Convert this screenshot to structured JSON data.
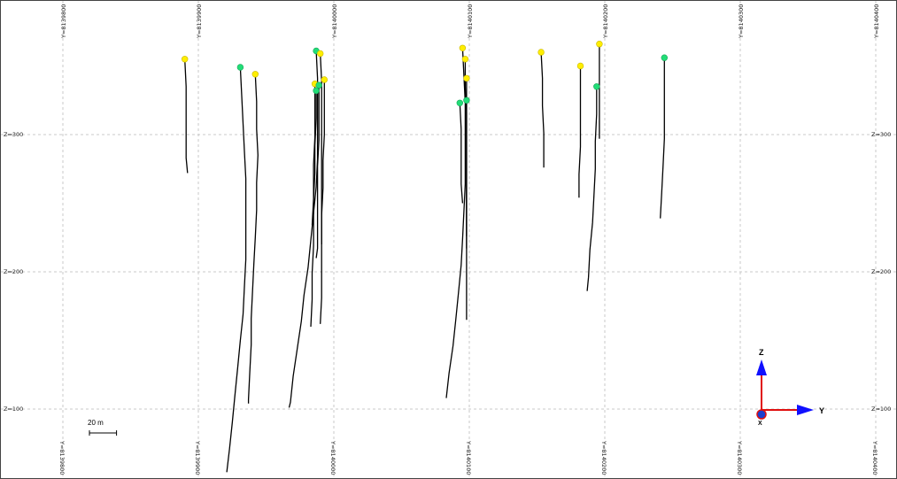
{
  "view": {
    "y_ticks": [
      {
        "label": "Y=8139800",
        "value": 8139800
      },
      {
        "label": "Y=8139900",
        "value": 8139900
      },
      {
        "label": "Y=8140000",
        "value": 8140000
      },
      {
        "label": "Y=8140100",
        "value": 8140100
      },
      {
        "label": "Y=8140200",
        "value": 8140200
      },
      {
        "label": "Y=8140300",
        "value": 8140300
      },
      {
        "label": "Y=8140400",
        "value": 8140400
      }
    ],
    "z_ticks": [
      {
        "label": "Z=300",
        "value": 300
      },
      {
        "label": "Z=200",
        "value": 200
      },
      {
        "label": "Z=100",
        "value": 100
      }
    ],
    "scale_bar": {
      "label": "20 m",
      "length_m": 20
    },
    "axis_triad": {
      "z_label": "Z",
      "y_label": "Y",
      "x_label": "X",
      "z_color": "#1010ff",
      "y_color": "#1010ff",
      "stem_color": "#e01010",
      "x_color": "#1a3fd0"
    },
    "collar_colors": {
      "yellow": "#ffee00",
      "green": "#22dd77"
    }
  },
  "drillholes": [
    {
      "collar": "yellow",
      "path": [
        [
          8139890,
          355
        ],
        [
          8139891,
          335
        ],
        [
          8139891,
          317
        ],
        [
          8139891,
          298
        ],
        [
          8139891,
          283
        ],
        [
          8139892,
          272
        ]
      ]
    },
    {
      "collar": "green",
      "path": [
        [
          8139931,
          349
        ],
        [
          8139932,
          328
        ],
        [
          8139933,
          308
        ],
        [
          8139934,
          288
        ],
        [
          8139935,
          268
        ],
        [
          8139935,
          248
        ],
        [
          8139935,
          229
        ],
        [
          8139935,
          209
        ],
        [
          8139934,
          189
        ],
        [
          8139933,
          169
        ],
        [
          8139931,
          150
        ],
        [
          8139929,
          130
        ],
        [
          8139927,
          110
        ],
        [
          8139925,
          90
        ],
        [
          8139923,
          71
        ],
        [
          8139921,
          54
        ]
      ]
    },
    {
      "collar": "yellow",
      "path": [
        [
          8139942,
          344
        ],
        [
          8139943,
          324
        ],
        [
          8139943,
          304
        ],
        [
          8139944,
          285
        ],
        [
          8139943,
          265
        ],
        [
          8139943,
          245
        ],
        [
          8139942,
          225
        ],
        [
          8139941,
          206
        ],
        [
          8139940,
          186
        ],
        [
          8139939,
          166
        ],
        [
          8139939,
          147
        ],
        [
          8139938,
          127
        ],
        [
          8139937,
          107
        ],
        [
          8139937,
          104
        ]
      ]
    },
    {
      "collar": "green",
      "path": [
        [
          8139987,
          361
        ],
        [
          8139988,
          341
        ],
        [
          8139988,
          321
        ],
        [
          8139988,
          302
        ],
        [
          8139988,
          282
        ],
        [
          8139987,
          262
        ],
        [
          8139985,
          243
        ],
        [
          8139983,
          223
        ],
        [
          8139981,
          203
        ],
        [
          8139978,
          183
        ],
        [
          8139976,
          164
        ],
        [
          8139973,
          144
        ],
        [
          8139970,
          124
        ],
        [
          8139968,
          105
        ],
        [
          8139967,
          101
        ]
      ]
    },
    {
      "collar": "yellow",
      "path": [
        [
          8139990,
          359
        ],
        [
          8139991,
          339
        ],
        [
          8139991,
          319
        ],
        [
          8139991,
          299
        ],
        [
          8139991,
          280
        ],
        [
          8139991,
          260
        ],
        [
          8139991,
          240
        ],
        [
          8139991,
          221
        ],
        [
          8139991,
          201
        ],
        [
          8139991,
          181
        ],
        [
          8139990,
          162
        ]
      ]
    },
    {
      "collar": "yellow",
      "path": [
        [
          8139986,
          337
        ],
        [
          8139986,
          318
        ],
        [
          8139986,
          298
        ],
        [
          8139985,
          278
        ],
        [
          8139985,
          259
        ],
        [
          8139985,
          239
        ],
        [
          8139985,
          219
        ],
        [
          8139984,
          199
        ],
        [
          8139984,
          180
        ],
        [
          8139983,
          160
        ]
      ]
    },
    {
      "collar": "yellow",
      "path": [
        [
          8139993,
          340
        ],
        [
          8139993,
          320
        ],
        [
          8139993,
          300
        ],
        [
          8139992,
          281
        ],
        [
          8139992,
          261
        ],
        [
          8139991,
          241
        ],
        [
          8139991,
          220
        ]
      ]
    },
    {
      "collar": "green",
      "path": [
        [
          8139989,
          336
        ],
        [
          8139989,
          316
        ],
        [
          8139989,
          296
        ],
        [
          8139988,
          277
        ],
        [
          8139988,
          257
        ],
        [
          8139988,
          237
        ],
        [
          8139988,
          217
        ],
        [
          8139987,
          210
        ]
      ]
    },
    {
      "collar": "green",
      "path": [
        [
          8139987,
          332
        ],
        [
          8139987,
          312
        ],
        [
          8139986,
          292
        ],
        [
          8139986,
          272
        ],
        [
          8139985,
          253
        ],
        [
          8139984,
          234
        ]
      ]
    },
    {
      "collar": "yellow",
      "path": [
        [
          8140095,
          363
        ],
        [
          8140096,
          343
        ],
        [
          8140097,
          323
        ],
        [
          8140097,
          303
        ],
        [
          8140097,
          284
        ],
        [
          8140097,
          264
        ],
        [
          8140096,
          244
        ],
        [
          8140095,
          224
        ],
        [
          8140094,
          205
        ],
        [
          8140092,
          185
        ],
        [
          8140090,
          165
        ],
        [
          8140088,
          146
        ],
        [
          8140085,
          126
        ],
        [
          8140083,
          108
        ]
      ]
    },
    {
      "collar": "yellow",
      "path": [
        [
          8140097,
          355
        ],
        [
          8140097,
          335
        ],
        [
          8140098,
          316
        ],
        [
          8140098,
          296
        ],
        [
          8140098,
          276
        ],
        [
          8140098,
          256
        ],
        [
          8140098,
          237
        ],
        [
          8140098,
          217
        ]
      ]
    },
    {
      "collar": "yellow",
      "path": [
        [
          8140098,
          341
        ],
        [
          8140098,
          321
        ],
        [
          8140098,
          301
        ],
        [
          8140098,
          281
        ],
        [
          8140098,
          262
        ],
        [
          8140098,
          242
        ],
        [
          8140098,
          222
        ],
        [
          8140098,
          202
        ],
        [
          8140098,
          183
        ],
        [
          8140098,
          165
        ]
      ]
    },
    {
      "collar": "green",
      "path": [
        [
          8140093,
          323
        ],
        [
          8140094,
          304
        ],
        [
          8140094,
          284
        ],
        [
          8140094,
          264
        ],
        [
          8140095,
          250
        ]
      ]
    },
    {
      "collar": "green",
      "path": [
        [
          8140098,
          325
        ],
        [
          8140098,
          305
        ],
        [
          8140098,
          285
        ],
        [
          8140098,
          265
        ],
        [
          8140098,
          245
        ],
        [
          8140098,
          226
        ]
      ]
    },
    {
      "collar": "yellow",
      "path": [
        [
          8140153,
          360
        ],
        [
          8140154,
          341
        ],
        [
          8140154,
          321
        ],
        [
          8140155,
          301
        ],
        [
          8140155,
          281
        ],
        [
          8140155,
          276
        ]
      ]
    },
    {
      "collar": "yellow",
      "path": [
        [
          8140182,
          350
        ],
        [
          8140182,
          331
        ],
        [
          8140182,
          311
        ],
        [
          8140182,
          291
        ],
        [
          8140181,
          271
        ],
        [
          8140181,
          254
        ]
      ]
    },
    {
      "collar": "yellow",
      "path": [
        [
          8140196,
          366
        ],
        [
          8140196,
          346
        ],
        [
          8140196,
          326
        ],
        [
          8140196,
          306
        ],
        [
          8140196,
          297
        ]
      ]
    },
    {
      "collar": "green",
      "path": [
        [
          8140194,
          335
        ],
        [
          8140194,
          315
        ],
        [
          8140193,
          295
        ],
        [
          8140193,
          275
        ],
        [
          8140192,
          256
        ],
        [
          8140191,
          236
        ],
        [
          8140189,
          216
        ],
        [
          8140188,
          196
        ],
        [
          8140187,
          186
        ]
      ]
    },
    {
      "collar": "green",
      "path": [
        [
          8140244,
          356
        ],
        [
          8140244,
          337
        ],
        [
          8140244,
          317
        ],
        [
          8140244,
          297
        ],
        [
          8140243,
          277
        ],
        [
          8140242,
          258
        ],
        [
          8140241,
          239
        ]
      ]
    }
  ]
}
